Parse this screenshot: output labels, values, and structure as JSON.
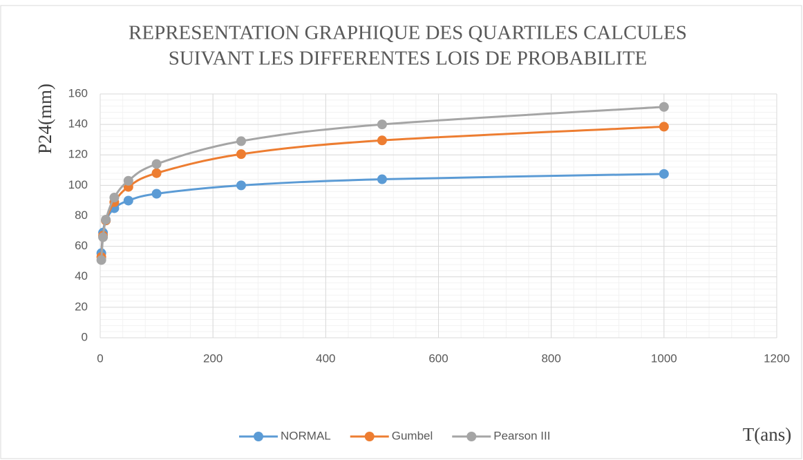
{
  "chart_data": {
    "type": "line",
    "title": [
      "REPRESENTATION GRAPHIQUE DES QUARTILES CALCULES",
      "SUIVANT LES DIFFERENTES LOIS DE PROBABILITE"
    ],
    "ylabel": "P24(mm)",
    "xlabel": "T(ans)",
    "x": [
      2,
      5,
      10,
      25,
      50,
      100,
      250,
      500,
      1000
    ],
    "series": [
      {
        "name": "NORMAL",
        "color": "#5b9bd5",
        "values": [
          55.5,
          69,
          77,
          85,
          90,
          94.5,
          100,
          104,
          107.5
        ]
      },
      {
        "name": "Gumbel",
        "color": "#ed7d31",
        "values": [
          53,
          67,
          77,
          89,
          99,
          108,
          120.5,
          129.5,
          138.5
        ]
      },
      {
        "name": "Pearson III",
        "color": "#a5a5a5",
        "values": [
          51,
          66,
          77.5,
          92,
          103,
          114,
          129,
          140,
          151.5
        ]
      }
    ],
    "xlim": [
      0,
      1200
    ],
    "xticks": [
      0,
      200,
      400,
      600,
      800,
      1000,
      1200
    ],
    "ylim": [
      0,
      160
    ],
    "yticks": [
      0,
      20,
      40,
      60,
      80,
      100,
      120,
      140,
      160
    ],
    "grid": true,
    "minor_grid": true,
    "legend": "bottom",
    "smooth": true
  }
}
